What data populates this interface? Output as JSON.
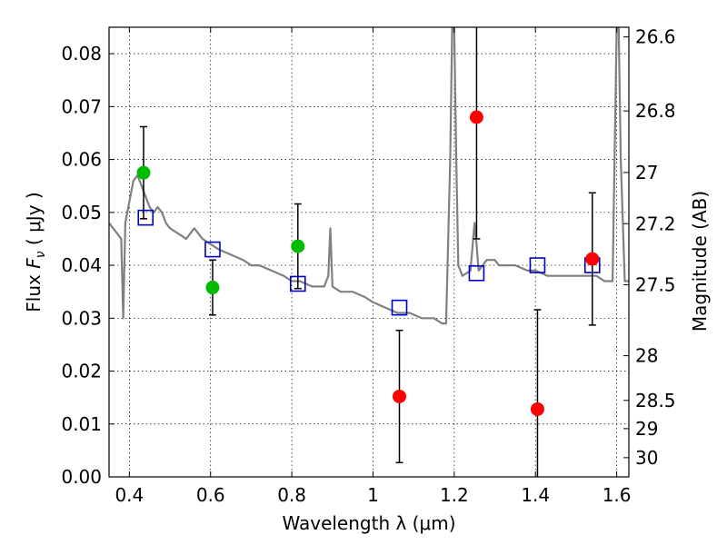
{
  "chart_data": {
    "type": "scatter",
    "xlabel": "Wavelength  λ (μm)",
    "ylabel": "Flux  F_ν  ( μJy )",
    "ylabel_right": "Magnitude (AB)",
    "xlim": [
      0.35,
      1.63
    ],
    "ylim": [
      0.0,
      0.085
    ],
    "grid": true,
    "x_ticks": [
      0.4,
      0.6,
      0.8,
      1.0,
      1.2,
      1.4,
      1.6
    ],
    "x_tick_labels": [
      "0.4",
      "0.6",
      "0.8",
      "1",
      "1.2",
      "1.4",
      "1.6"
    ],
    "y_ticks": [
      0.0,
      0.01,
      0.02,
      0.03,
      0.04,
      0.05,
      0.06,
      0.07,
      0.08
    ],
    "y_tick_labels": [
      "0.00",
      "0.01",
      "0.02",
      "0.03",
      "0.04",
      "0.05",
      "0.06",
      "0.07",
      "0.08"
    ],
    "mag_ticks": [
      26.6,
      26.8,
      27,
      27.2,
      27.5,
      28,
      28.5,
      29,
      30
    ],
    "mag_tick_labels": [
      "26.6",
      "26.8",
      "27",
      "27.2",
      "27.5",
      "28",
      "28.5",
      "29",
      "30"
    ],
    "series": [
      {
        "color": "#808080",
        "style": "line",
        "x": [
          0.35,
          0.36,
          0.37,
          0.38,
          0.385,
          0.39,
          0.4,
          0.41,
          0.42,
          0.43,
          0.44,
          0.45,
          0.46,
          0.47,
          0.48,
          0.49,
          0.5,
          0.52,
          0.54,
          0.56,
          0.58,
          0.6,
          0.62,
          0.65,
          0.68,
          0.7,
          0.72,
          0.75,
          0.78,
          0.8,
          0.82,
          0.85,
          0.88,
          0.89,
          0.895,
          0.9,
          0.92,
          0.95,
          0.98,
          1.0,
          1.03,
          1.06,
          1.09,
          1.12,
          1.15,
          1.17,
          1.18,
          1.19,
          1.195,
          1.2,
          1.205,
          1.21,
          1.22,
          1.24,
          1.25,
          1.255,
          1.26,
          1.28,
          1.3,
          1.31,
          1.32,
          1.35,
          1.38,
          1.4,
          1.43,
          1.45,
          1.48,
          1.5,
          1.53,
          1.55,
          1.57,
          1.59,
          1.6,
          1.605,
          1.61,
          1.62,
          1.63
        ],
        "y": [
          0.048,
          0.047,
          0.046,
          0.045,
          0.03,
          0.048,
          0.052,
          0.056,
          0.057,
          0.055,
          0.053,
          0.051,
          0.05,
          0.051,
          0.05,
          0.048,
          0.047,
          0.046,
          0.045,
          0.047,
          0.045,
          0.044,
          0.043,
          0.042,
          0.041,
          0.04,
          0.04,
          0.039,
          0.038,
          0.037,
          0.037,
          0.036,
          0.036,
          0.038,
          0.047,
          0.036,
          0.035,
          0.035,
          0.034,
          0.033,
          0.032,
          0.031,
          0.031,
          0.03,
          0.03,
          0.029,
          0.029,
          0.06,
          0.085,
          0.085,
          0.06,
          0.04,
          0.038,
          0.039,
          0.048,
          0.044,
          0.039,
          0.041,
          0.041,
          0.04,
          0.04,
          0.04,
          0.039,
          0.039,
          0.038,
          0.038,
          0.038,
          0.038,
          0.038,
          0.038,
          0.037,
          0.037,
          0.085,
          0.085,
          0.06,
          0.037,
          0.037
        ]
      },
      {
        "color": "#0000cc",
        "style": "open-square",
        "x": [
          0.44,
          0.605,
          0.815,
          1.065,
          1.255,
          1.405,
          1.54
        ],
        "y": [
          0.049,
          0.043,
          0.0365,
          0.032,
          0.0385,
          0.04,
          0.04
        ]
      },
      {
        "color": "#00bb00",
        "style": "circle",
        "x": [
          0.435,
          0.605,
          0.815
        ],
        "y": [
          0.0575,
          0.0358,
          0.0436
        ],
        "errors": [
          null,
          0.0052,
          0.008
        ]
      },
      {
        "color": "#ff0000",
        "style": "circle",
        "x": [
          1.065,
          1.255,
          1.405,
          1.54
        ],
        "y": [
          0.0152,
          0.068,
          0.0128,
          0.0412
        ],
        "errors": [
          0.0125,
          0.023,
          0.0188,
          0.0125
        ]
      },
      {
        "color": "#000000",
        "style": "errorbar-only",
        "x": [
          0.435
        ],
        "y": [
          0.0575
        ],
        "errors": [
          0.0087
        ]
      }
    ]
  }
}
